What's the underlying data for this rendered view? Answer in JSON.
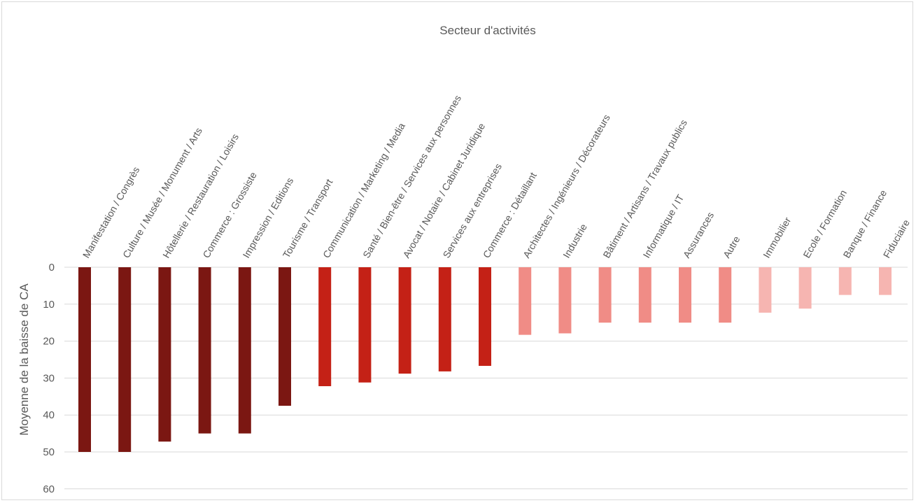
{
  "chart_data": {
    "type": "bar",
    "orientation": "vertical",
    "y_axis_inverted": true,
    "xlabel": "Secteur d'activités",
    "ylabel": "Moyenne de la baisse de CA",
    "ylim": [
      0,
      60
    ],
    "yticks": [
      0,
      10,
      20,
      30,
      40,
      50,
      60
    ],
    "grid": true,
    "legend": "none",
    "categories": [
      "Manifestation / Congrès",
      "Culture / Musée / Monument / Arts",
      "Hôtellerie / Restauration / Loisirs",
      "Commerce : Grossiste",
      "Impression / Editions",
      "Tourisme / Transport",
      "Communication / Marketing / Media",
      "Santé / Bien-être / Services aux personnes",
      "Avocat / Notaire / Cabinet Juridique",
      "Services aux entreprises",
      "Commerce : Détaillant",
      "Architectes / Ingénieurs / Décorateurs",
      "Industrie",
      "Bâtiment / Artisans / Travaux publics",
      "Informatique / IT",
      "Assurances",
      "Autre",
      "Immobilier",
      "Ecole / Formation",
      "Banque / Finance",
      "Fiduciaire"
    ],
    "values": [
      50,
      50,
      47.2,
      45,
      45,
      37.5,
      32.2,
      31.2,
      28.8,
      28.2,
      26.7,
      18.3,
      17.9,
      15,
      15,
      15,
      15,
      12.3,
      11.2,
      7.5,
      7.5
    ],
    "bar_colors": [
      "#7b1712",
      "#7b1712",
      "#7b1712",
      "#7b1712",
      "#7b1712",
      "#7b1712",
      "#c42116",
      "#c42116",
      "#c42116",
      "#c42116",
      "#c42116",
      "#f08c86",
      "#f08c86",
      "#f08c86",
      "#f08c86",
      "#f08c86",
      "#f08c86",
      "#f6b5b1",
      "#f6b5b1",
      "#f6b5b1",
      "#f6b5b1"
    ],
    "gridline_color": "#d9d9d9"
  }
}
